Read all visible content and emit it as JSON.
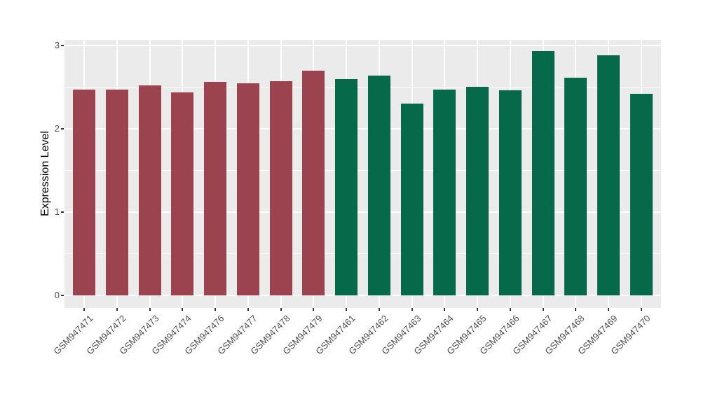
{
  "chart_data": {
    "type": "bar",
    "title": "",
    "xlabel": "",
    "ylabel": "Expression Level",
    "ylim": [
      0,
      3.07
    ],
    "yticks": [
      "0",
      "1",
      "2",
      "3"
    ],
    "ytick_values": [
      0,
      1,
      2,
      3
    ],
    "yticks_minor": [
      0.5,
      1.5,
      2.5
    ],
    "grid": "major and minor horizontal white lines, vertical white line at each category",
    "legend": "none",
    "panel_bg": "#EBEBEB",
    "grid_color": "#FFFFFF",
    "tick_text_color": "#4D4D4D",
    "axis_title_color": "#000000",
    "categories": [
      "GSM947471",
      "GSM947472",
      "GSM947473",
      "GSM947474",
      "GSM947476",
      "GSM947477",
      "GSM947478",
      "GSM947479",
      "GSM947461",
      "GSM947462",
      "GSM947463",
      "GSM947464",
      "GSM947465",
      "GSM947466",
      "GSM947467",
      "GSM947468",
      "GSM947469",
      "GSM947470"
    ],
    "values": [
      2.47,
      2.47,
      2.52,
      2.44,
      2.56,
      2.55,
      2.57,
      2.7,
      2.6,
      2.64,
      2.3,
      2.47,
      2.5,
      2.46,
      2.93,
      2.61,
      2.88,
      2.42
    ],
    "bar_groups": [
      "A",
      "A",
      "A",
      "A",
      "A",
      "A",
      "A",
      "A",
      "B",
      "B",
      "B",
      "B",
      "B",
      "B",
      "B",
      "B",
      "B",
      "B"
    ],
    "palette": {
      "A": "#9C4350",
      "B": "#066A4A"
    }
  }
}
